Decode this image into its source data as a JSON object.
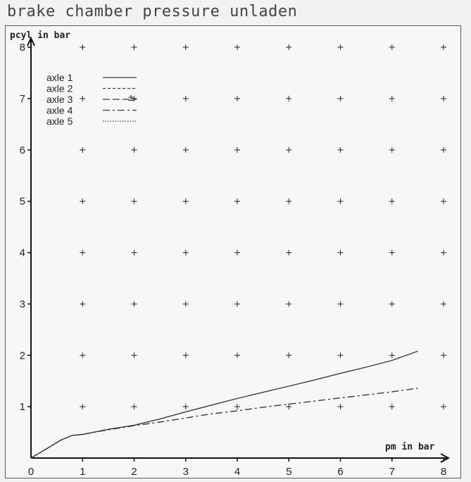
{
  "chart_data": {
    "type": "line",
    "title": "brake chamber pressure  unladen",
    "xlabel": "pm in bar",
    "ylabel": "pcyl in bar",
    "xlim": [
      0,
      8
    ],
    "ylim": [
      0,
      8
    ],
    "x_ticks": [
      "0",
      "1",
      "2",
      "3",
      "4",
      "5",
      "6",
      "7",
      "8"
    ],
    "y_ticks": [
      "1",
      "2",
      "3",
      "4",
      "5",
      "6",
      "7",
      "8"
    ],
    "grid": "crosses",
    "legend_position": "top-left",
    "legend_extra_mark": "±",
    "series": [
      {
        "name": "axle 1",
        "style": "solid",
        "x": [
          0,
          0.3,
          0.6,
          0.8,
          1.0,
          1.5,
          2.0,
          2.5,
          3.0,
          3.5,
          4.0,
          4.5,
          5.0,
          5.5,
          6.0,
          6.5,
          7.0,
          7.5
        ],
        "y": [
          0,
          0.18,
          0.36,
          0.44,
          0.46,
          0.56,
          0.64,
          0.76,
          0.9,
          1.03,
          1.16,
          1.28,
          1.4,
          1.52,
          1.65,
          1.77,
          1.9,
          2.08
        ]
      },
      {
        "name": "axle 2",
        "style": "dashed",
        "x": [],
        "y": []
      },
      {
        "name": "axle 3",
        "style": "long-dash",
        "x": [],
        "y": []
      },
      {
        "name": "axle 4",
        "style": "dash-dot",
        "x": [
          0,
          0.3,
          0.6,
          0.8,
          1.0,
          1.5,
          2.0,
          2.5,
          3.0,
          3.5,
          4.0,
          4.5,
          5.0,
          5.5,
          6.0,
          6.5,
          7.0,
          7.5
        ],
        "y": [
          0,
          0.18,
          0.36,
          0.44,
          0.46,
          0.55,
          0.63,
          0.7,
          0.78,
          0.86,
          0.92,
          0.99,
          1.05,
          1.11,
          1.17,
          1.23,
          1.29,
          1.36
        ]
      },
      {
        "name": "axle 5",
        "style": "dotted",
        "x": [],
        "y": []
      }
    ]
  },
  "colors": {
    "line": "#3a3a3a",
    "background": "#f7f7f5"
  }
}
